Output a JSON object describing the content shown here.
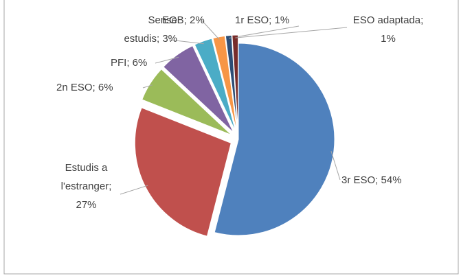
{
  "chart_data": {
    "type": "pie",
    "categories": [
      "3r ESO",
      "Estudis a l'estranger",
      "2n ESO",
      "PFI",
      "Sense estudis",
      "EGB",
      "1r ESO",
      "ESO adaptada"
    ],
    "values": [
      54,
      27,
      6,
      6,
      3,
      2,
      1,
      1
    ],
    "value_labels": [
      "3r ESO; 54%",
      "Estudis a l'estranger; 27%",
      "2n ESO; 6%",
      "PFI; 6%",
      "Sense estudis; 3%",
      "EGB; 2%",
      "1r ESO; 1%",
      "ESO adaptada; 1%"
    ],
    "colors": [
      "#4f81bd",
      "#c0504d",
      "#9bbb59",
      "#8064a2",
      "#4bacc6",
      "#f79646",
      "#2c4d75",
      "#772c2a"
    ]
  }
}
